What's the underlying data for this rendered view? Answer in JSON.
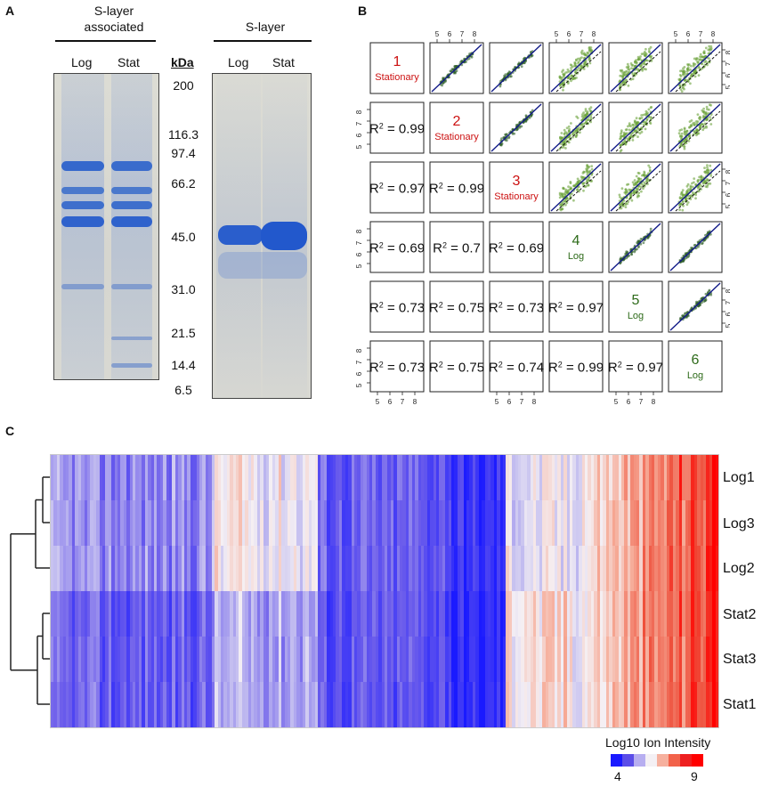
{
  "panel_a": {
    "letter": "A",
    "group1_title_line1": "S-layer",
    "group1_title_line2": "associated",
    "group2_title": "S-layer",
    "lane_log": "Log",
    "lane_stat": "Stat",
    "lane_log2": "Log",
    "lane_stat2": "Stat",
    "unit_label": "kDa",
    "markers": [
      "200",
      "116.3",
      "97.4",
      "66.2",
      "45.0",
      "31.0",
      "21.5",
      "14.4",
      "6.5"
    ]
  },
  "panel_b": {
    "letter": "B",
    "axis_ticks": [
      "5",
      "6",
      "7",
      "8"
    ],
    "diagonal": [
      {
        "num": "1",
        "label": "Stationary",
        "color": "#cc1111"
      },
      {
        "num": "2",
        "label": "Stationary",
        "color": "#cc1111"
      },
      {
        "num": "3",
        "label": "Stationary",
        "color": "#cc1111"
      },
      {
        "num": "4",
        "label": "Log",
        "color": "#2e6b1a"
      },
      {
        "num": "5",
        "label": "Log",
        "color": "#2e6b1a"
      },
      {
        "num": "6",
        "label": "Log",
        "color": "#2e6b1a"
      }
    ],
    "r2_prefix": "R",
    "r2_exp": "2",
    "r2_values": {
      "r1": [
        "0.99"
      ],
      "r2": [
        "0.97",
        "0.99"
      ],
      "r3": [
        "0.69",
        "0.7",
        "0.69"
      ],
      "r4": [
        "0.73",
        "0.75",
        "0.73",
        "0.97"
      ],
      "r5": [
        "0.73",
        "0.75",
        "0.74",
        "0.99",
        "0.97"
      ]
    }
  },
  "panel_c": {
    "letter": "C",
    "row_labels": [
      "Log1",
      "Log3",
      "Log2",
      "Stat2",
      "Stat3",
      "Stat1"
    ],
    "legend_title": "Log10 Ion Intensity",
    "legend_min": "4",
    "legend_max": "9",
    "legend_colors": [
      "#1a1aff",
      "#5b4de8",
      "#b7aef0",
      "#f4f0f4",
      "#f6b09e",
      "#f2624a",
      "#ee2020",
      "#ff0000"
    ]
  }
}
